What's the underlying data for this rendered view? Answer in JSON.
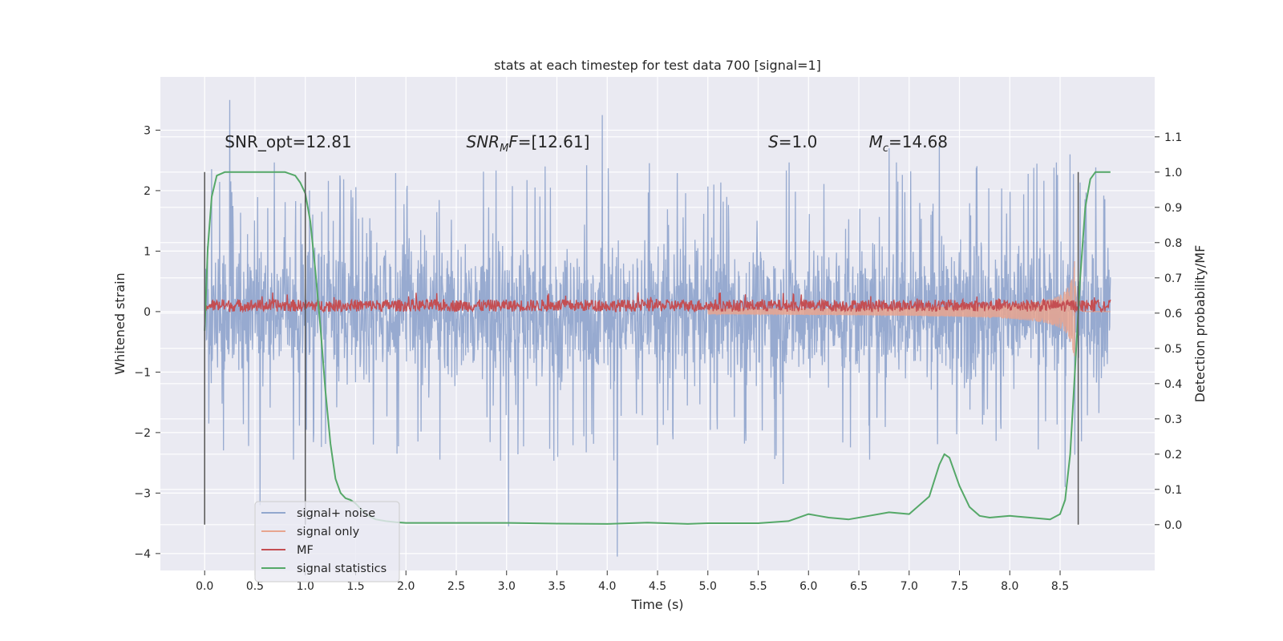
{
  "chart_data": {
    "type": "line",
    "title": "stats at each timestep for test data 700 [signal=1]",
    "xlabel": "Time (s)",
    "ylabel": "Whitened strain",
    "y2label": "Detection probability/MF",
    "xlim": [
      -0.44,
      9.44
    ],
    "ylim": [
      -4.28,
      3.88
    ],
    "y2lim": [
      -0.13,
      1.27
    ],
    "xticks": [
      "0.0",
      "0.5",
      "1.0",
      "1.5",
      "2.0",
      "2.5",
      "3.0",
      "3.5",
      "4.0",
      "4.5",
      "5.0",
      "5.5",
      "6.0",
      "6.5",
      "7.0",
      "7.5",
      "8.0",
      "8.5"
    ],
    "yticks": [
      "3",
      "2",
      "1",
      "0",
      "−1",
      "−2",
      "−3",
      "−4"
    ],
    "y2ticks": [
      "1.1",
      "1.0",
      "0.9",
      "0.8",
      "0.7",
      "0.6",
      "0.5",
      "0.4",
      "0.3",
      "0.2",
      "0.1",
      "0.0"
    ],
    "grid": true,
    "legend_position": "lower-left",
    "series": [
      {
        "name": "signal+ noise",
        "color": "#92a7ce",
        "kind": "noise",
        "x_range": [
          0,
          9.0
        ],
        "envelope": 1.45,
        "spikes": [
          [
            0.25,
            3.5
          ],
          [
            0.55,
            -3.2
          ],
          [
            3.02,
            -3.55
          ],
          [
            3.95,
            3.25
          ],
          [
            4.1,
            -4.05
          ],
          [
            5.75,
            -2.85
          ],
          [
            6.8,
            2.7
          ],
          [
            7.3,
            2.75
          ],
          [
            8.6,
            2.6
          ],
          [
            8.55,
            -2.9
          ]
        ]
      },
      {
        "name": "signal only",
        "color": "#e7a58f",
        "kind": "chirp",
        "x_range": [
          5.0,
          9.0
        ],
        "peak": 1.0,
        "peak_time": 8.65
      },
      {
        "name": "MF",
        "color": "#c44e52",
        "kind": "mf",
        "x_range": [
          0,
          9.0
        ],
        "center": 0.1,
        "amplitude": 0.1
      },
      {
        "name": "signal statistics",
        "color": "#55a868",
        "kind": "smooth",
        "axis": "y2",
        "x": [
          0.0,
          0.03,
          0.07,
          0.12,
          0.2,
          0.3,
          0.4,
          0.5,
          0.6,
          0.7,
          0.8,
          0.9,
          0.95,
          1.0,
          1.05,
          1.1,
          1.15,
          1.2,
          1.25,
          1.3,
          1.35,
          1.4,
          1.45,
          1.5,
          1.6,
          1.7,
          1.8,
          1.9,
          2.0,
          2.5,
          3.0,
          3.5,
          4.0,
          4.4,
          4.8,
          5.0,
          5.5,
          5.8,
          6.0,
          6.1,
          6.2,
          6.4,
          6.6,
          6.8,
          7.0,
          7.2,
          7.3,
          7.35,
          7.4,
          7.5,
          7.6,
          7.7,
          7.8,
          8.0,
          8.2,
          8.4,
          8.5,
          8.55,
          8.6,
          8.65,
          8.7,
          8.75,
          8.8,
          8.85,
          8.9,
          9.0
        ],
        "y": [
          0.55,
          0.78,
          0.93,
          0.99,
          1.0,
          1.0,
          1.0,
          1.0,
          1.0,
          1.0,
          1.0,
          0.99,
          0.97,
          0.94,
          0.86,
          0.72,
          0.56,
          0.38,
          0.23,
          0.13,
          0.09,
          0.075,
          0.07,
          0.06,
          0.03,
          0.015,
          0.01,
          0.007,
          0.005,
          0.005,
          0.005,
          0.003,
          0.002,
          0.006,
          0.002,
          0.004,
          0.004,
          0.01,
          0.03,
          0.025,
          0.02,
          0.015,
          0.025,
          0.035,
          0.03,
          0.08,
          0.17,
          0.2,
          0.19,
          0.11,
          0.05,
          0.025,
          0.02,
          0.025,
          0.02,
          0.015,
          0.03,
          0.07,
          0.2,
          0.45,
          0.7,
          0.9,
          0.98,
          1.0,
          1.0,
          1.0
        ]
      }
    ],
    "vlines": [
      0.0,
      1.0,
      8.68
    ],
    "annotations": [
      {
        "id": "snr_opt",
        "text": "SNR_opt=12.81",
        "x": 0.2
      },
      {
        "id": "snr_mf",
        "prefix": "SNR",
        "sub": "M",
        "mid": "F",
        "suffix": "=[12.61]",
        "x": 2.6
      },
      {
        "id": "s",
        "var": "S",
        "suffix": "=1.0",
        "x": 5.6
      },
      {
        "id": "mc",
        "var": "M",
        "sub": "c",
        "suffix": "=14.68",
        "x": 6.6
      }
    ]
  }
}
